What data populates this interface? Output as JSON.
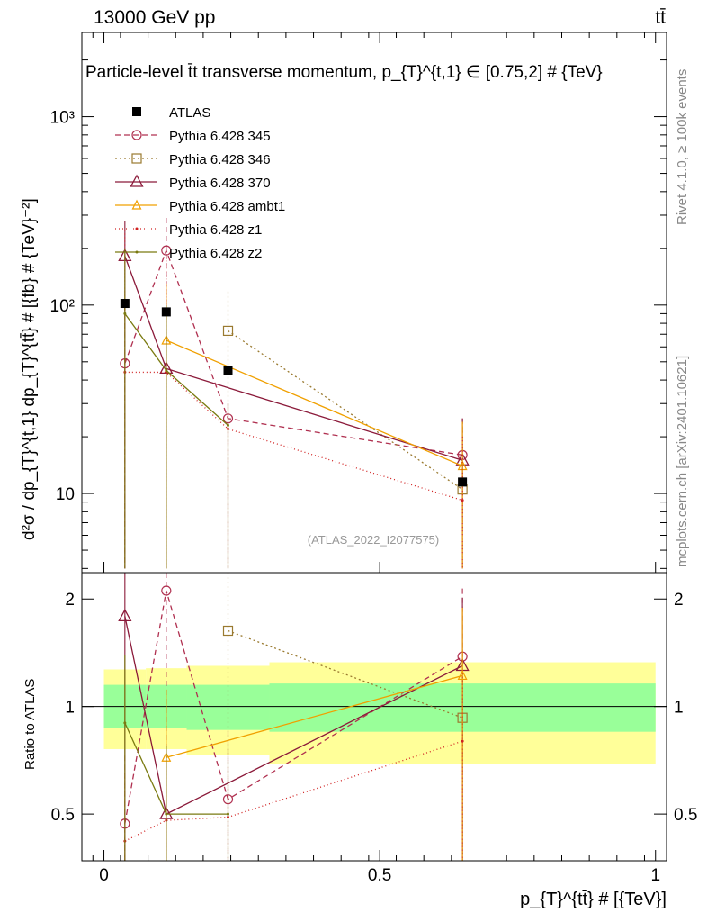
{
  "header": {
    "left": "13000 GeV pp",
    "right": "tt̄"
  },
  "side_texts": {
    "rivet": "Rivet 4.1.0, ≥ 100k events",
    "mcplots": "mcplots.cern.ch [arXiv:2401.10621]"
  },
  "chart_data": {
    "type": "scatter",
    "title": "Particle-level t̄t transverse momentum, p_{T}^{t,1} ∈ [0.75,2] # {TeV}",
    "watermark": "(ATLAS_2022_I2077575)",
    "xlabel": "p_{T}^{tt̄} # [{TeV}]",
    "ylabel": "d²σ / dp_{T}^{t,1} dp_{T}^{tt̄} # [{fb} # {TeV}⁻²]",
    "ratio_ylabel": "Ratio to ATLAS",
    "xlim": [
      -0.04,
      1.02
    ],
    "ylim_log": [
      3.8,
      2800
    ],
    "ratio_ylim": [
      0.37,
      2.37
    ],
    "x_ticks": [
      0,
      0.5,
      1
    ],
    "x_tick_labels": [
      "0",
      "0.5",
      "1"
    ],
    "y_major_ticks": [
      10,
      100,
      1000
    ],
    "y_tick_labels": [
      "10",
      "10²",
      "10³"
    ],
    "ratio_ticks": [
      0.5,
      1,
      2
    ],
    "ratio_tick_labels": [
      "0.5",
      "1",
      "2"
    ],
    "legend_position": "top-left",
    "data": {
      "name": "ATLAS",
      "x": [
        0.038,
        0.113,
        0.225,
        0.65
      ],
      "y": [
        102,
        92,
        45,
        11.5
      ],
      "x_err": [
        0.038,
        0.037,
        0.075,
        0.35
      ],
      "band_inner": [
        [
          0.87,
          1.15
        ],
        [
          0.87,
          1.15
        ],
        [
          0.86,
          1.15
        ],
        [
          0.85,
          1.16
        ]
      ],
      "band_outer": [
        [
          0.76,
          1.27
        ],
        [
          0.76,
          1.28
        ],
        [
          0.73,
          1.3
        ],
        [
          0.69,
          1.33
        ]
      ]
    },
    "series": [
      {
        "name": "Pythia 6.428 345",
        "color": "#b03050",
        "dash": "6,4",
        "marker": "circle",
        "x": [
          0.038,
          0.113,
          0.225,
          0.65
        ],
        "y": [
          49,
          195,
          25,
          16
        ],
        "err_hi": [
          100,
          290,
          30,
          25
        ],
        "err_lo": [
          4,
          4,
          4,
          6.5
        ],
        "ratio": [
          0.47,
          2.11,
          0.55,
          1.38
        ]
      },
      {
        "name": "Pythia 6.428 346",
        "color": "#9a7a30",
        "dash": "2,3",
        "marker": "square",
        "x": [
          0.225,
          0.65
        ],
        "y": [
          73,
          10.5
        ],
        "err_hi": [
          118,
          24
        ],
        "err_lo": [
          4,
          4
        ],
        "ratio": [
          1.63,
          0.93
        ]
      },
      {
        "name": "Pythia 6.428 370",
        "color": "#8b1a3a",
        "dash": "",
        "marker": "triangle",
        "x": [
          0.038,
          0.113,
          0.65
        ],
        "y": [
          182,
          46,
          15
        ],
        "err_hi": [
          280,
          100,
          25
        ],
        "err_lo": [
          4,
          4,
          4
        ],
        "ratio": [
          1.79,
          0.5,
          1.3
        ]
      },
      {
        "name": "Pythia 6.428 ambt1",
        "color": "#f0a000",
        "dash": "",
        "marker": "triangle-small",
        "x": [
          0.113,
          0.65
        ],
        "y": [
          65,
          14
        ],
        "err_hi": [
          130,
          24
        ],
        "err_lo": [
          4,
          4
        ],
        "ratio": [
          0.72,
          1.22
        ]
      },
      {
        "name": "Pythia 6.428 z1",
        "color": "#d02020",
        "dash": "1,3",
        "marker": "dot",
        "x": [
          0.038,
          0.113,
          0.225,
          0.65
        ],
        "y": [
          44,
          44,
          22,
          9.2
        ],
        "err_hi": [
          250,
          180,
          30,
          20
        ],
        "err_lo": [
          4,
          4,
          4,
          4
        ],
        "ratio": [
          0.42,
          0.48,
          0.49,
          0.8
        ]
      },
      {
        "name": "Pythia 6.428 z2",
        "color": "#7a7a10",
        "dash": "",
        "marker": "dot",
        "x": [
          0.038,
          0.113,
          0.225
        ],
        "y": [
          90,
          45,
          23
        ],
        "err_hi": [
          200,
          100,
          30
        ],
        "err_lo": [
          4,
          4,
          4
        ],
        "ratio": [
          0.9,
          0.5,
          0.5
        ]
      }
    ]
  }
}
